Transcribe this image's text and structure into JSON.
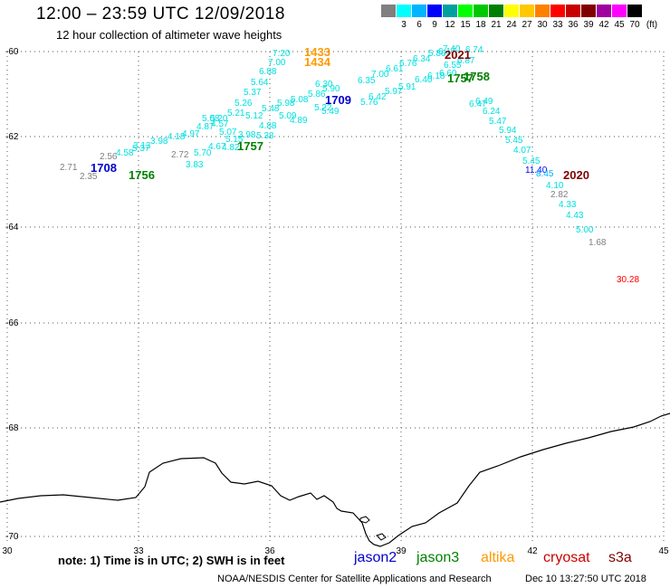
{
  "header": {
    "title": "12:00 – 23:59 UTC 12/09/2018",
    "subtitle": "12 hour collection of altimeter wave heights"
  },
  "legend": {
    "swatches": [
      {
        "label": "",
        "color": "#808080"
      },
      {
        "label": "3",
        "color": "#00ffff"
      },
      {
        "label": "6",
        "color": "#00b4ff"
      },
      {
        "label": "9",
        "color": "#0000ff"
      },
      {
        "label": "12",
        "color": "#00a0a0"
      },
      {
        "label": "15",
        "color": "#00ff00"
      },
      {
        "label": "18",
        "color": "#00c800"
      },
      {
        "label": "21",
        "color": "#008000"
      },
      {
        "label": "24",
        "color": "#ffff00"
      },
      {
        "label": "27",
        "color": "#ffc800"
      },
      {
        "label": "30",
        "color": "#ff8000"
      },
      {
        "label": "33",
        "color": "#ff0000"
      },
      {
        "label": "36",
        "color": "#c80000"
      },
      {
        "label": "39",
        "color": "#800000"
      },
      {
        "label": "42",
        "color": "#a000a0"
      },
      {
        "label": "45",
        "color": "#ff00ff"
      },
      {
        "label": "70",
        "color": "#000000"
      }
    ],
    "unit": "(ft)"
  },
  "axes": {
    "lat_labels": [
      "-60",
      "-62",
      "-64",
      "-66",
      "-68",
      "-70"
    ],
    "lon_labels": [
      "30",
      "33",
      "36",
      "39",
      "42",
      "45"
    ]
  },
  "track_times": [
    {
      "text": "1433",
      "color": "#ff9900"
    },
    {
      "text": "1434",
      "color": "#ff9900"
    },
    {
      "text": "2021",
      "color": "#800000"
    },
    {
      "text": "1758",
      "color": "#008000"
    },
    {
      "text": "1757",
      "color": "#008000"
    },
    {
      "text": "1709",
      "color": "#0000cc"
    },
    {
      "text": "1708",
      "color": "#0000cc"
    },
    {
      "text": "1756",
      "color": "#008000"
    },
    {
      "text": "1757",
      "color": "#008000"
    },
    {
      "text": "2020",
      "color": "#800000"
    }
  ],
  "wave_labels": [
    {
      "text": "7.20",
      "color": "#00e0e0"
    },
    {
      "text": "7.00",
      "color": "#00e0e0"
    },
    {
      "text": "6.88",
      "color": "#00e0e0"
    },
    {
      "text": "5.64",
      "color": "#00e0e0"
    },
    {
      "text": "5.37",
      "color": "#00e0e0"
    },
    {
      "text": "5.26",
      "color": "#00e0e0"
    },
    {
      "text": "5.21",
      "color": "#00e0e0"
    },
    {
      "text": "5.12",
      "color": "#00e0e0"
    },
    {
      "text": "5.48",
      "color": "#00e0e0"
    },
    {
      "text": "5.98",
      "color": "#00e0e0"
    },
    {
      "text": "5.08",
      "color": "#00e0e0"
    },
    {
      "text": "5.86",
      "color": "#00e0e0"
    },
    {
      "text": "5.90",
      "color": "#00e0e0"
    },
    {
      "text": "6.30",
      "color": "#00e0e0"
    },
    {
      "text": "6.35",
      "color": "#00e0e0"
    },
    {
      "text": "7.00",
      "color": "#00e0e0"
    },
    {
      "text": "6.61",
      "color": "#00e0e0"
    },
    {
      "text": "6.76",
      "color": "#00e0e0"
    },
    {
      "text": "6.34",
      "color": "#00e0e0"
    },
    {
      "text": "5.86",
      "color": "#00e0e0"
    },
    {
      "text": "6.17",
      "color": "#00e0e0"
    },
    {
      "text": "7.40",
      "color": "#00e0e0"
    },
    {
      "text": "6.74",
      "color": "#00e0e0"
    },
    {
      "text": "6.55",
      "color": "#00e0e0"
    },
    {
      "text": "6.87",
      "color": "#00e0e0"
    },
    {
      "text": "6.40",
      "color": "#00e0e0"
    },
    {
      "text": "6.18",
      "color": "#00e0e0"
    },
    {
      "text": "6.60",
      "color": "#00e0e0"
    },
    {
      "text": "6.47",
      "color": "#00e0e0"
    },
    {
      "text": "6.49",
      "color": "#00e0e0"
    },
    {
      "text": "6.24",
      "color": "#00e0e0"
    },
    {
      "text": "5.47",
      "color": "#00e0e0"
    },
    {
      "text": "5.94",
      "color": "#00e0e0"
    },
    {
      "text": "5.45",
      "color": "#00e0e0"
    },
    {
      "text": "4.07",
      "color": "#00e0e0"
    },
    {
      "text": "5.45",
      "color": "#00e0e0"
    },
    {
      "text": "11.40",
      "color": "#0000ff"
    },
    {
      "text": "8.45",
      "color": "#00b4ff"
    },
    {
      "text": "4.10",
      "color": "#00e0e0"
    },
    {
      "text": "2.82",
      "color": "#808080"
    },
    {
      "text": "4.33",
      "color": "#00e0e0"
    },
    {
      "text": "4.43",
      "color": "#00e0e0"
    },
    {
      "text": "5.00",
      "color": "#00e0e0"
    },
    {
      "text": "1.68",
      "color": "#808080"
    },
    {
      "text": "30.28",
      "color": "#ff0000"
    },
    {
      "text": "6.42",
      "color": "#00e0e0"
    },
    {
      "text": "5.97",
      "color": "#00e0e0"
    },
    {
      "text": "5.91",
      "color": "#00e0e0"
    },
    {
      "text": "5.76",
      "color": "#00e0e0"
    },
    {
      "text": "5.49",
      "color": "#00e0e0"
    },
    {
      "text": "5.22",
      "color": "#00e0e0"
    },
    {
      "text": "4.89",
      "color": "#00e0e0"
    },
    {
      "text": "5.09",
      "color": "#00e0e0"
    },
    {
      "text": "4.88",
      "color": "#00e0e0"
    },
    {
      "text": "5.38",
      "color": "#00e0e0"
    },
    {
      "text": "3.98",
      "color": "#00e0e0"
    },
    {
      "text": "5.15",
      "color": "#00e0e0"
    },
    {
      "text": "4.67",
      "color": "#00e0e0"
    },
    {
      "text": "5.70",
      "color": "#00e0e0"
    },
    {
      "text": "3.83",
      "color": "#00e0e0"
    },
    {
      "text": "2.72",
      "color": "#808080"
    },
    {
      "text": "4.97",
      "color": "#00e0e0"
    },
    {
      "text": "4.87",
      "color": "#00e0e0"
    },
    {
      "text": "4.57",
      "color": "#00e0e0"
    },
    {
      "text": "5.07",
      "color": "#00e0e0"
    },
    {
      "text": "5.20",
      "color": "#00e0e0"
    },
    {
      "text": "5.08",
      "color": "#00e0e0"
    },
    {
      "text": "4.82",
      "color": "#00e0e0"
    },
    {
      "text": "4.18",
      "color": "#00e0e0"
    },
    {
      "text": "3.98",
      "color": "#00e0e0"
    },
    {
      "text": "3.13",
      "color": "#00e0e0"
    },
    {
      "text": "5.37",
      "color": "#00e0e0"
    },
    {
      "text": "4.58",
      "color": "#00e0e0"
    },
    {
      "text": "2.56",
      "color": "#808080"
    },
    {
      "text": "2.71",
      "color": "#808080"
    },
    {
      "text": "2.35",
      "color": "#808080"
    },
    {
      "text": "7.46",
      "color": "#00e0e0"
    }
  ],
  "note": "note: 1) Time is in UTC; 2) SWH is in feet",
  "satellites": [
    {
      "name": "jason2",
      "color": "#0000cc"
    },
    {
      "name": "jason3",
      "color": "#008000"
    },
    {
      "name": "altika",
      "color": "#ff9900"
    },
    {
      "name": "cryosat",
      "color": "#cc0000"
    },
    {
      "name": "s3a",
      "color": "#800000"
    }
  ],
  "footer": {
    "credit": "NOAA/NESDIS Center for Satellite Applications and Research",
    "generated": "Dec 10 13:27:50 UTC 2018"
  }
}
